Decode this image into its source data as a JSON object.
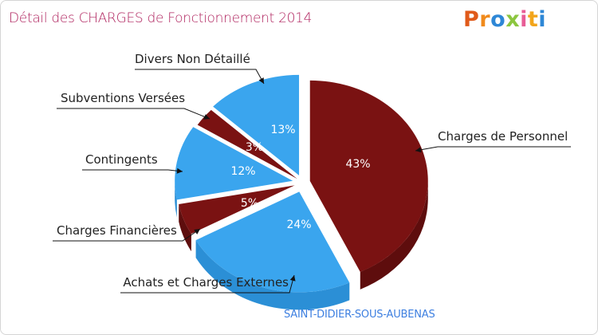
{
  "header": {
    "title": "Détail des CHARGES de Fonctionnement 2014",
    "logo": [
      "P",
      "r",
      "o",
      "x",
      "i",
      "t",
      "i"
    ]
  },
  "footer": {
    "commune": "SAINT-DIDIER-SOUS-AUBENAS"
  },
  "colors": {
    "dark_red": "#7a1212",
    "dark_red_side": "#5e0d0d",
    "blue": "#3aa5ee",
    "blue_side": "#2b8fd6",
    "title": "#b0245f",
    "commune": "#3d7fe0",
    "logo": [
      "#e05a1a",
      "#f08a1c",
      "#2e87d6",
      "#8cc63f",
      "#e85d96",
      "#f2a51c",
      "#2e87d6"
    ]
  },
  "chart_data": {
    "type": "pie",
    "title": "Détail des CHARGES de Fonctionnement 2014",
    "exploded": true,
    "three_d": true,
    "slices": [
      {
        "label": "Charges de Personnel",
        "value": 43,
        "display": "43%",
        "color": "dark_red"
      },
      {
        "label": "Achats et Charges Externes",
        "value": 24,
        "display": "24%",
        "color": "blue"
      },
      {
        "label": "Charges Financières",
        "value": 5,
        "display": "5%",
        "color": "dark_red"
      },
      {
        "label": "Contingents",
        "value": 12,
        "display": "12%",
        "color": "blue"
      },
      {
        "label": "Subventions Versées",
        "value": 3,
        "display": "3%",
        "color": "dark_red"
      },
      {
        "label": "Divers Non Détaillé",
        "value": 13,
        "display": "13%",
        "color": "blue"
      }
    ]
  }
}
